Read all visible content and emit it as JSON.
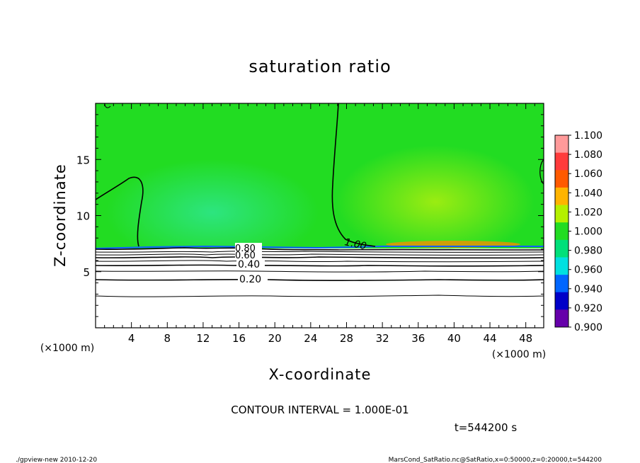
{
  "chart_data": {
    "type": "heatmap",
    "title": "saturation ratio",
    "xlabel": "X-coordinate",
    "ylabel": "Z-coordinate",
    "x_unit": "(×1000 m)",
    "y_unit": "(×1000 m)",
    "xlim": [
      0,
      50
    ],
    "ylim": [
      0,
      20
    ],
    "x_ticks": [
      4,
      8,
      12,
      16,
      20,
      24,
      28,
      32,
      36,
      40,
      44,
      48
    ],
    "y_ticks": [
      5,
      10,
      15
    ],
    "contour_interval_text": "CONTOUR INTERVAL = 1.000E-01",
    "time_text": "t=544200 s",
    "contour_labels": [
      {
        "text": "1.00",
        "x": 29.3,
        "z": 7.5
      },
      {
        "text": "0.80",
        "x": 17.2,
        "z": 7.1
      },
      {
        "text": "0.60",
        "x": 17.0,
        "z": 6.7
      },
      {
        "text": "0.40",
        "x": 17.2,
        "z": 5.6
      },
      {
        "text": "0.20",
        "x": 17.5,
        "z": 4.3
      }
    ],
    "colorbar": {
      "min": 0.9,
      "max": 1.1,
      "labels": [
        "1.100",
        "1.080",
        "1.060",
        "1.040",
        "1.020",
        "1.000",
        "0.980",
        "0.960",
        "0.940",
        "0.920",
        "0.900"
      ],
      "colors": [
        "#ff9a9a",
        "#ff3b3b",
        "#ff5a00",
        "#ffb400",
        "#b4f000",
        "#22dc22",
        "#00e07a",
        "#00e0e0",
        "#0066ff",
        "#0000c8",
        "#6600aa"
      ]
    }
  },
  "footer": {
    "left": "./gpview-new   2010-12-20",
    "right": "MarsCond_SatRatio.nc@SatRatio,x=0:50000,z=0:20000,t=544200"
  }
}
